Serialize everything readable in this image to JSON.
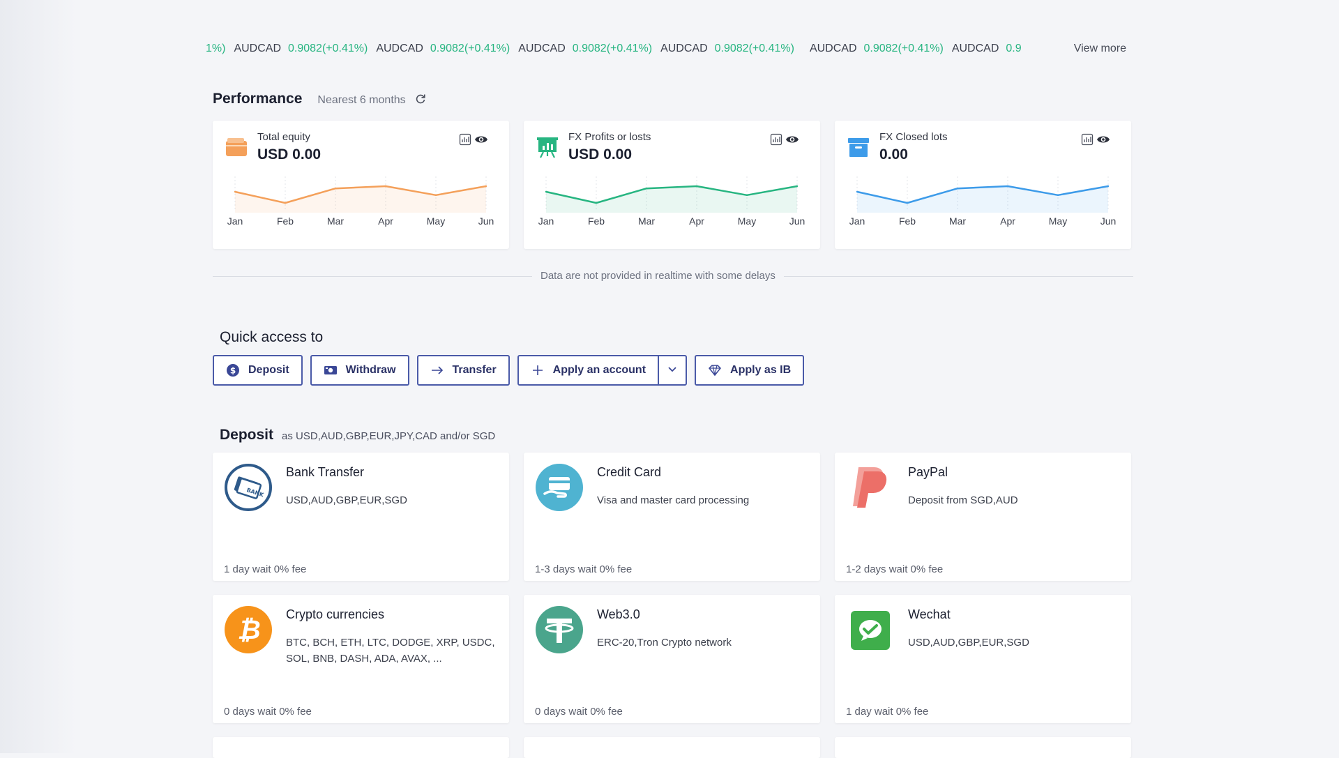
{
  "ticker": {
    "lead": "1%)",
    "items": [
      {
        "symbol": "AUDCAD",
        "value": "0.9082(+0.41%)"
      },
      {
        "symbol": "AUDCAD",
        "value": "0.9082(+0.41%)"
      },
      {
        "symbol": "AUDCAD",
        "value": "0.9082(+0.41%)"
      },
      {
        "symbol": "AUDCAD",
        "value": "0.9082(+0.41%)"
      },
      {
        "symbol": "AUDCAD",
        "value": "0.9082(+0.41%)"
      },
      {
        "symbol": "AUDCAD",
        "value": "0.9"
      }
    ],
    "view_more": "View more"
  },
  "performance": {
    "title": "Performance",
    "subtitle": "Nearest 6 months",
    "cards": [
      {
        "label": "Total equity",
        "amount": "USD 0.00",
        "color": "#f4a05a",
        "icon": "wallet-icon"
      },
      {
        "label": "FX Profits or losts",
        "amount": "USD 0.00",
        "color": "#27b581",
        "icon": "presentation-chart-icon"
      },
      {
        "label": "FX Closed lots",
        "amount": "0.00",
        "color": "#3d9be9",
        "icon": "archive-box-icon"
      }
    ],
    "months": [
      "Jan",
      "Feb",
      "Mar",
      "Apr",
      "May",
      "Jun"
    ]
  },
  "chart_data": [
    {
      "type": "line",
      "categories": [
        "Jan",
        "Feb",
        "Mar",
        "Apr",
        "May",
        "Jun"
      ],
      "values": [
        3,
        1,
        3.6,
        4,
        2.4,
        4
      ],
      "ylim": [
        0,
        5
      ],
      "grid": true
    },
    {
      "type": "line",
      "categories": [
        "Jan",
        "Feb",
        "Mar",
        "Apr",
        "May",
        "Jun"
      ],
      "values": [
        3,
        1,
        3.6,
        4,
        2.4,
        4
      ],
      "ylim": [
        0,
        5
      ],
      "grid": true
    },
    {
      "type": "line",
      "categories": [
        "Jan",
        "Feb",
        "Mar",
        "Apr",
        "May",
        "Jun"
      ],
      "values": [
        3,
        1,
        3.6,
        4,
        2.4,
        4
      ],
      "ylim": [
        0,
        5
      ],
      "grid": true
    }
  ],
  "notice": "Data are not provided in realtime with some delays",
  "quick_access": {
    "title": "Quick access to",
    "buttons": {
      "deposit": "Deposit",
      "withdraw": "Withdraw",
      "transfer": "Transfer",
      "apply_account": "Apply an account",
      "apply_ib": "Apply as IB"
    }
  },
  "deposit": {
    "title": "Deposit",
    "subtitle": "as USD,AUD,GBP,EUR,JPY,CAD and/or SGD",
    "methods": [
      {
        "name": "Bank Transfer",
        "desc": "USD,AUD,GBP,EUR,SGD",
        "fee": "1 day wait 0% fee",
        "icon": "bank-card-icon"
      },
      {
        "name": "Credit Card",
        "desc": "Visa and master card processing",
        "fee": "1-3 days wait 0% fee",
        "icon": "credit-card-hand-icon"
      },
      {
        "name": "PayPal",
        "desc": "Deposit from SGD,AUD",
        "fee": "1-2 days wait 0% fee",
        "icon": "paypal-icon"
      },
      {
        "name": "Crypto currencies",
        "desc": "BTC, BCH, ETH, LTC, DODGE, XRP, USDC, SOL, BNB, DASH, ADA, AVAX, ...",
        "fee": "0 days wait 0% fee",
        "icon": "bitcoin-icon"
      },
      {
        "name": "Web3.0",
        "desc": "ERC-20,Tron Crypto network",
        "fee": "0 days wait 0% fee",
        "icon": "tether-icon"
      },
      {
        "name": "Wechat",
        "desc": "USD,AUD,GBP,EUR,SGD",
        "fee": "1 day wait 0% fee",
        "icon": "wechat-icon"
      }
    ]
  },
  "colors": {
    "accent": "#4a5aa8",
    "positive": "#27b581",
    "orange": "#f4a05a",
    "blue": "#3d9be9"
  }
}
